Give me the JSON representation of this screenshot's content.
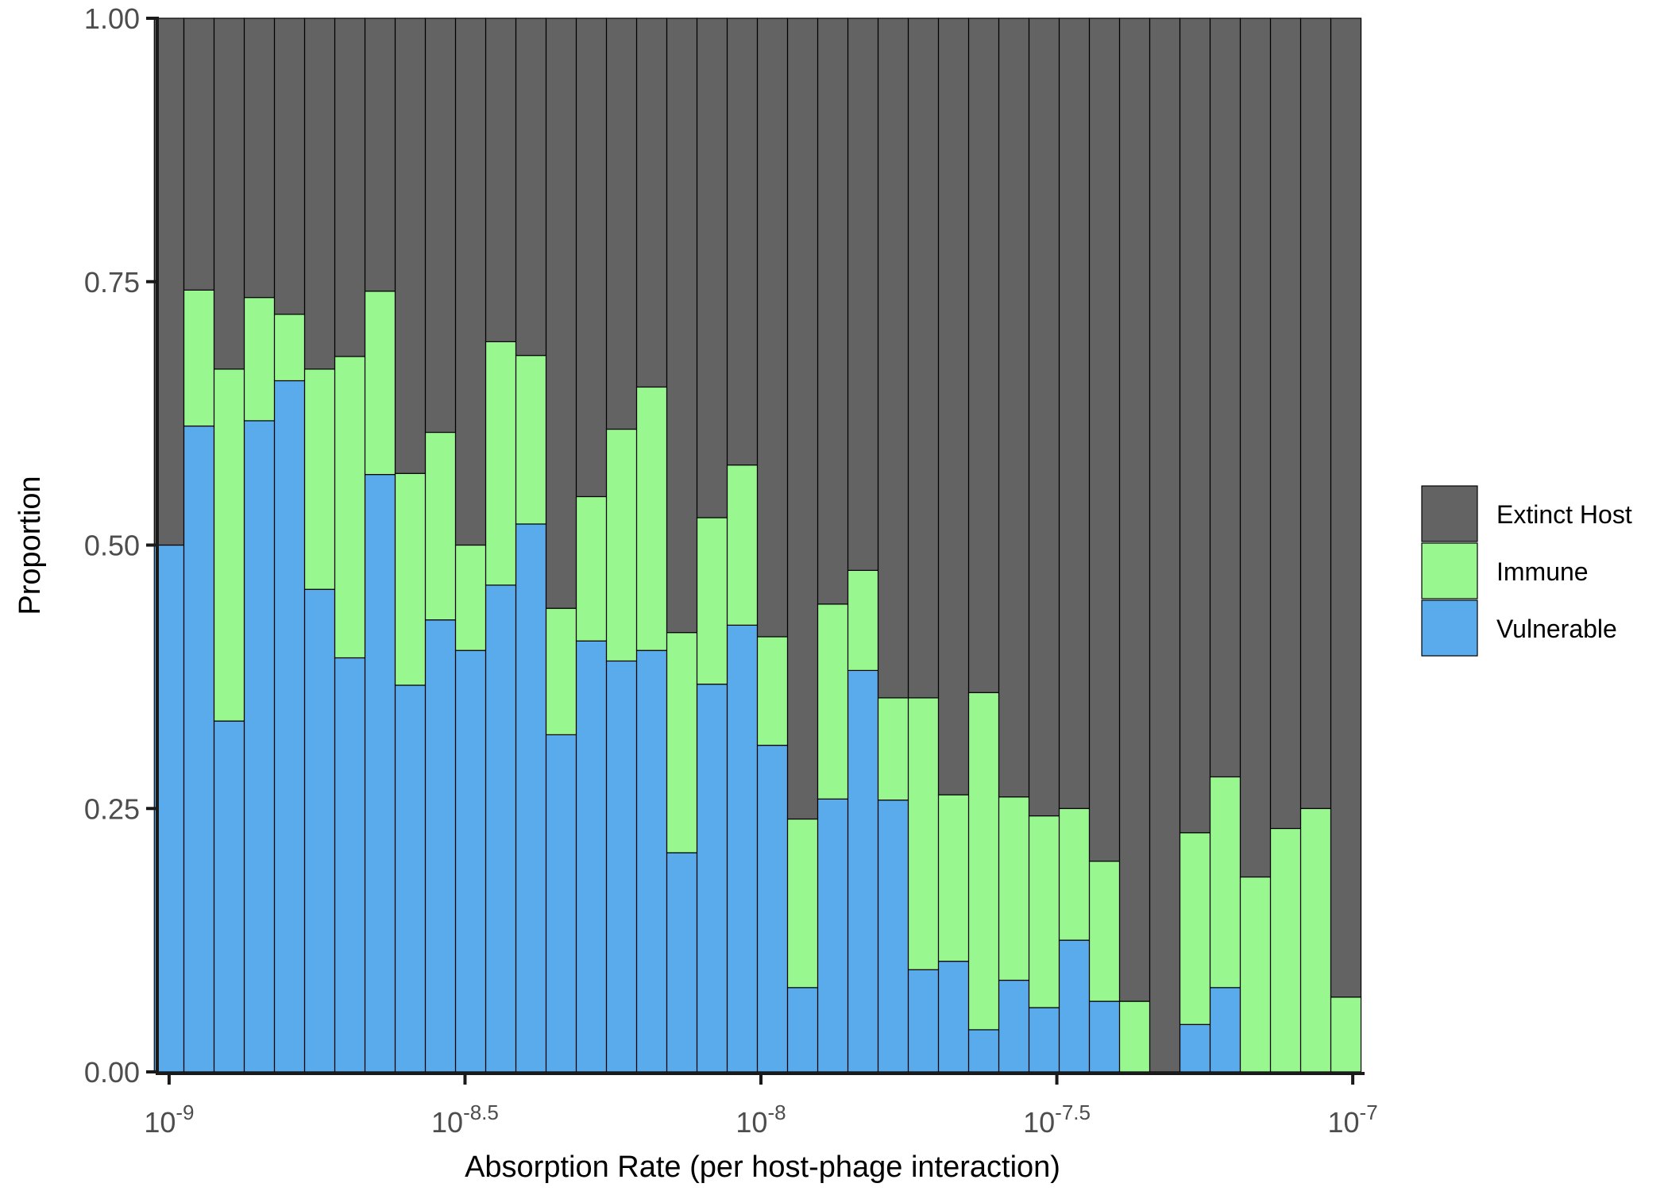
{
  "chart_data": {
    "type": "bar",
    "stacked": true,
    "xlabel": "Absorption Rate (per host-phage interaction)",
    "ylabel": "Proportion",
    "x_scale": "log10",
    "xlim_log10": [
      -9.02,
      -6.98
    ],
    "ylim": [
      0,
      1
    ],
    "y_ticks": [
      "0.00",
      "0.25",
      "0.50",
      "0.75",
      "1.00"
    ],
    "x_ticks": [
      {
        "value_log10": -9,
        "base": "10",
        "exp": "-9"
      },
      {
        "value_log10": -8.5,
        "base": "10",
        "exp": "-8.5"
      },
      {
        "value_log10": -8,
        "base": "10",
        "exp": "-8"
      },
      {
        "value_log10": -7.5,
        "base": "10",
        "exp": "-7.5"
      },
      {
        "value_log10": -7,
        "base": "10",
        "exp": "-7"
      }
    ],
    "bin_edges_log10": [
      -9.025,
      -8.975,
      -8.924,
      -8.873,
      -8.822,
      -8.771,
      -8.72,
      -8.669,
      -8.618,
      -8.567,
      -8.516,
      -8.465,
      -8.414,
      -8.363,
      -8.312,
      -8.261,
      -8.21,
      -8.159,
      -8.108,
      -8.057,
      -8.006,
      -7.955,
      -7.904,
      -7.853,
      -7.802,
      -7.751,
      -7.7,
      -7.649,
      -7.598,
      -7.547,
      -7.496,
      -7.445,
      -7.394,
      -7.343,
      -7.292,
      -7.241,
      -7.19,
      -7.139,
      -7.088,
      -7.037,
      -6.986
    ],
    "legend_position": "right",
    "series": [
      {
        "name": "Vulnerable",
        "color": "#5aabeb",
        "values": [
          0.5,
          0.613,
          0.333,
          0.618,
          0.656,
          0.458,
          0.393,
          0.567,
          0.367,
          0.429,
          0.4,
          0.462,
          0.52,
          0.32,
          0.409,
          0.39,
          0.4,
          0.208,
          0.368,
          0.424,
          0.31,
          0.08,
          0.259,
          0.381,
          0.258,
          0.097,
          0.105,
          0.04,
          0.087,
          0.061,
          0.125,
          0.067,
          0.0,
          0.0,
          0.045,
          0.08,
          0.0,
          0.0,
          0.0,
          0.0
        ]
      },
      {
        "name": "Immune",
        "color": "#98f78f",
        "values": [
          0.0,
          0.129,
          0.334,
          0.117,
          0.063,
          0.209,
          0.286,
          0.174,
          0.201,
          0.178,
          0.1,
          0.231,
          0.16,
          0.12,
          0.137,
          0.22,
          0.25,
          0.209,
          0.158,
          0.152,
          0.103,
          0.16,
          0.185,
          0.095,
          0.097,
          0.258,
          0.158,
          0.32,
          0.174,
          0.182,
          0.125,
          0.133,
          0.067,
          0.0,
          0.182,
          0.2,
          0.185,
          0.231,
          0.25,
          0.071
        ]
      },
      {
        "name": "Extinct Host",
        "color": "#636363",
        "values": [
          0.5,
          0.258,
          0.333,
          0.265,
          0.281,
          0.333,
          0.321,
          0.259,
          0.432,
          0.393,
          0.5,
          0.307,
          0.32,
          0.56,
          0.454,
          0.39,
          0.35,
          0.583,
          0.474,
          0.424,
          0.587,
          0.76,
          0.556,
          0.524,
          0.645,
          0.645,
          0.737,
          0.64,
          0.739,
          0.757,
          0.75,
          0.8,
          0.933,
          1.0,
          0.773,
          0.72,
          0.815,
          0.769,
          0.75,
          0.929
        ]
      }
    ],
    "legend_order": [
      "Extinct Host",
      "Immune",
      "Vulnerable"
    ]
  }
}
